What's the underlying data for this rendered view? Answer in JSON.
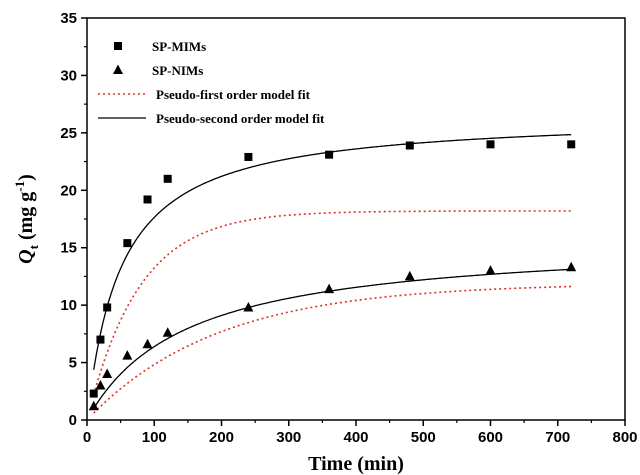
{
  "chart_data": {
    "type": "scatter",
    "xlabel": "Time (min)",
    "ylabel": {
      "main": "Q",
      "sub": "t",
      "unit": " (mg g",
      "sup": "-1",
      "close": ")"
    },
    "xlim": [
      0,
      800
    ],
    "ylim": [
      0,
      35
    ],
    "x_ticks": [
      0,
      100,
      200,
      300,
      400,
      500,
      600,
      700,
      800
    ],
    "y_ticks": [
      0,
      5,
      10,
      15,
      20,
      25,
      30,
      35
    ],
    "legend_placement": "top-left",
    "grid": false,
    "series": [
      {
        "name": "SP-MIMs",
        "marker": "square",
        "color": "#000000",
        "x": [
          10,
          20,
          30,
          60,
          90,
          120,
          240,
          360,
          480,
          600,
          720
        ],
        "y": [
          2.3,
          7.0,
          9.8,
          15.4,
          19.2,
          21.0,
          22.9,
          23.1,
          23.9,
          24.0,
          24.0
        ]
      },
      {
        "name": "SP-NIMs",
        "marker": "triangle",
        "color": "#000000",
        "x": [
          10,
          20,
          30,
          60,
          90,
          120,
          240,
          360,
          480,
          600,
          720
        ],
        "y": [
          1.2,
          3.0,
          4.0,
          5.6,
          6.6,
          7.6,
          9.8,
          11.4,
          12.5,
          13.0,
          13.3
        ]
      },
      {
        "name": "Pseudo-first order model fit",
        "style": "dotted",
        "color": "#e0302a",
        "curves": [
          {
            "fit": "first",
            "qe": 18.2,
            "k": 0.013,
            "x_range": [
              10,
              720
            ]
          },
          {
            "fit": "first",
            "qe": 11.9,
            "k": 0.0052,
            "x_range": [
              10,
              720
            ]
          }
        ]
      },
      {
        "name": "Pseudo-second order model fit",
        "style": "solid",
        "color": "#000000",
        "curves": [
          {
            "fit": "second",
            "qe": 26.6,
            "k": 0.00074,
            "x_range": [
              10,
              720
            ]
          },
          {
            "fit": "second",
            "qe": 15.8,
            "k": 0.00043,
            "x_range": [
              10,
              720
            ]
          }
        ]
      }
    ]
  }
}
